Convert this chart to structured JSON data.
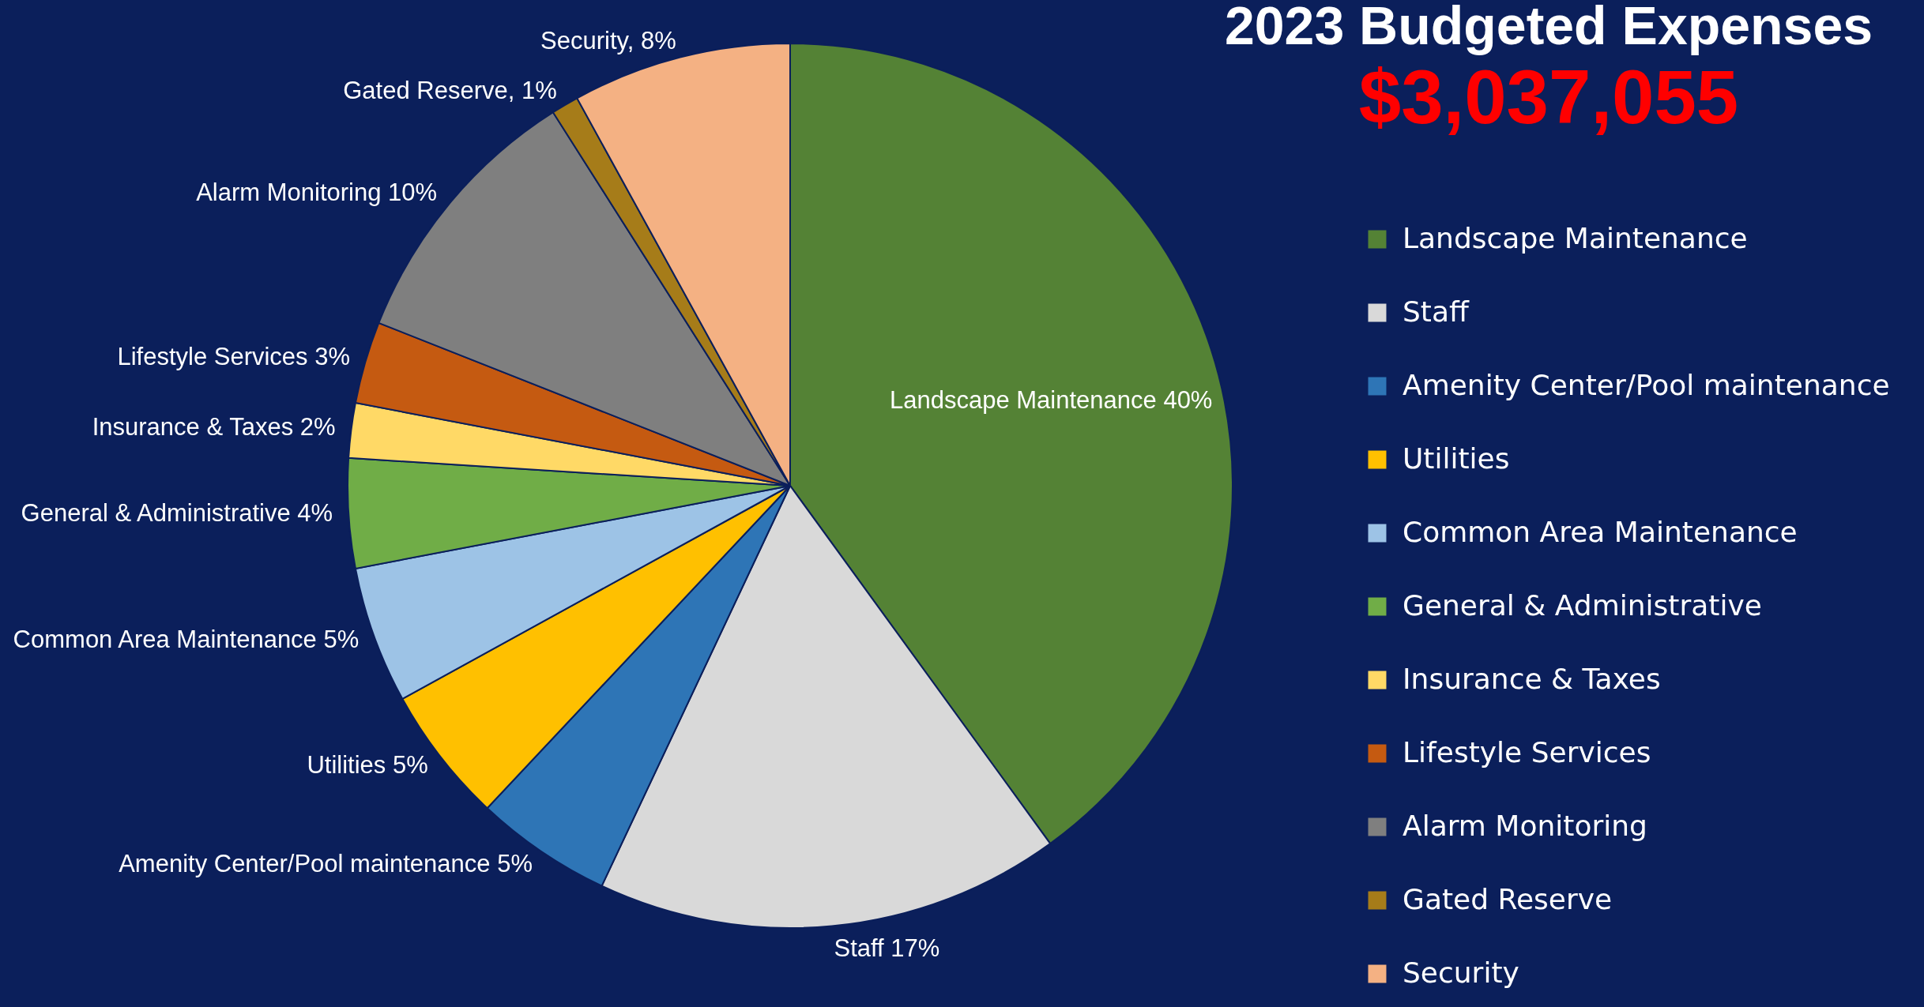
{
  "chart_data": {
    "type": "pie",
    "title": "2023 Budgeted Expenses",
    "subtitle": "$3,037,055",
    "categories": [
      "Landscape Maintenance",
      "Staff",
      "Amenity Center/Pool maintenance",
      "Utilities",
      "Common Area Maintenance",
      "General & Administrative",
      "Insurance & Taxes",
      "Lifestyle Services",
      "Alarm Monitoring",
      "Gated Reserve",
      "Security"
    ],
    "values": [
      40,
      17,
      5,
      5,
      5,
      4,
      2,
      3,
      10,
      1,
      8
    ],
    "colors": [
      "#548235",
      "#d9d9d9",
      "#2e75b6",
      "#ffc000",
      "#9dc3e6",
      "#70ad47",
      "#ffd966",
      "#c55a11",
      "#7f7f7f",
      "#a67c19",
      "#f4b183"
    ],
    "value_labels": [
      "Landscape Maintenance 40%",
      "Staff 17%",
      "Amenity Center/Pool maintenance 5%",
      "Utilities  5%",
      "Common Area Maintenance 5%",
      "General & Administrative 4%",
      "Insurance & Taxes 2%",
      "Lifestyle Services 3%",
      "Alarm Monitoring 10%",
      "Gated Reserve, 1%",
      "Security, 8%"
    ],
    "legend": "right"
  }
}
